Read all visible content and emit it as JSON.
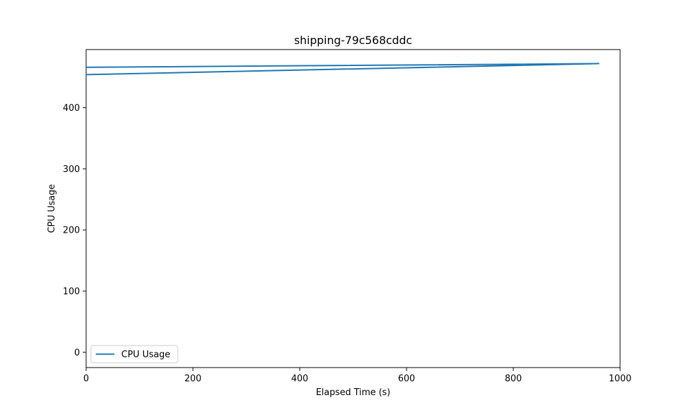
{
  "chart_data": {
    "type": "line",
    "title": "shipping-79c568cddc",
    "xlabel": "Elapsed Time (s)",
    "ylabel": "CPU Usage",
    "xlim": [
      0,
      1000
    ],
    "ylim": [
      -25,
      495
    ],
    "x_ticks": [
      0,
      200,
      400,
      600,
      800,
      1000
    ],
    "y_ticks": [
      0,
      100,
      200,
      300,
      400
    ],
    "x_tick_labels": [
      "0",
      "200",
      "400",
      "600",
      "800",
      "1000"
    ],
    "y_tick_labels": [
      "0",
      "100",
      "200",
      "300",
      "400"
    ],
    "grid": false,
    "legend_position": "lower-left",
    "series": [
      {
        "name": "CPU Usage",
        "color": "#1f77b4",
        "x": [
          0,
          960,
          0
        ],
        "y": [
          466,
          472,
          454
        ]
      }
    ]
  }
}
